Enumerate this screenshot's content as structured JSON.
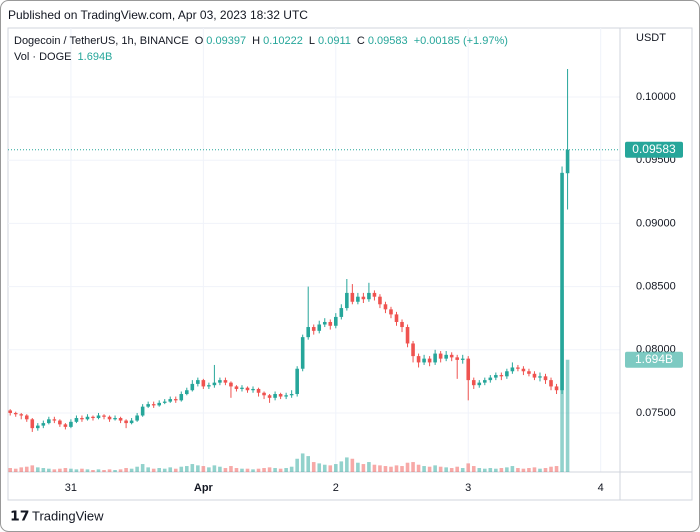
{
  "chart_data": {
    "type": "candlestick",
    "published": "Published on TradingView.com, Apr 03, 2023 18:32 UTC",
    "title": "Dogecoin / TetherUS, 1h, BINANCE",
    "ohlc_labels": [
      "O",
      "H",
      "L",
      "C"
    ],
    "change": "+0.00185 (+1.97%)",
    "volume_title": "Vol · DOGE",
    "volume_label": "1.694B",
    "y_unit": "USDT",
    "brand": "TradingView",
    "up_color": "#26a69a",
    "down_color": "#ef5350",
    "categories": [
      null,
      null,
      null,
      null,
      null,
      null,
      null,
      null,
      null,
      null,
      null,
      null,
      null,
      null,
      null,
      null,
      null,
      null,
      null,
      null,
      null,
      null,
      null,
      null,
      null,
      null,
      null,
      null,
      null,
      null,
      null,
      null,
      null,
      null,
      null,
      null,
      null,
      null,
      null,
      null,
      null,
      null,
      null,
      null,
      null,
      null,
      null,
      null,
      null,
      null,
      null,
      null,
      null,
      null,
      null,
      null,
      null,
      null,
      null,
      null,
      null,
      null,
      null,
      null,
      null,
      null,
      null,
      null,
      null,
      null,
      null,
      null,
      null,
      null,
      null,
      null,
      null,
      null,
      null,
      null,
      null,
      null,
      null,
      null,
      null,
      null,
      null,
      null,
      null,
      null,
      null,
      null,
      null,
      null,
      null,
      null,
      null,
      null,
      null,
      null,
      null,
      null
    ],
    "open": [
      0.0752,
      0.075,
      0.0749,
      0.0748,
      0.0745,
      0.0738,
      0.074,
      0.0742,
      0.0745,
      0.0744,
      0.0741,
      0.0739,
      0.0743,
      0.0746,
      0.0745,
      0.0747,
      0.0746,
      0.0748,
      0.0747,
      0.0745,
      0.0746,
      0.0744,
      0.0742,
      0.0744,
      0.0748,
      0.0755,
      0.0757,
      0.0756,
      0.0758,
      0.0759,
      0.0761,
      0.076,
      0.0765,
      0.0768,
      0.0773,
      0.0776,
      0.0771,
      0.0772,
      0.0774,
      0.0776,
      0.0774,
      0.0771,
      0.0769,
      0.077,
      0.0768,
      0.0769,
      0.0766,
      0.0764,
      0.0762,
      0.0765,
      0.0763,
      0.0764,
      0.0765,
      0.0785,
      0.081,
      0.0818,
      0.0815,
      0.082,
      0.0822,
      0.0819,
      0.0826,
      0.0833,
      0.0845,
      0.0838,
      0.0842,
      0.084,
      0.0845,
      0.0842,
      0.0836,
      0.0832,
      0.0828,
      0.0822,
      0.0818,
      0.0805,
      0.0795,
      0.079,
      0.0793,
      0.079,
      0.0797,
      0.0793,
      0.0796,
      0.0794,
      0.0792,
      0.0793,
      0.0776,
      0.0772,
      0.0774,
      0.0776,
      0.0778,
      0.078,
      0.0779,
      0.0783,
      0.0786,
      0.0785,
      0.0783,
      0.0781,
      0.0778,
      0.0779,
      0.0776,
      0.0771,
      0.0768,
      0.09397
    ],
    "high": [
      0.0753,
      0.0751,
      0.075,
      0.0749,
      0.0746,
      0.0742,
      0.0744,
      0.0747,
      0.0747,
      0.0745,
      0.0742,
      0.0745,
      0.0748,
      0.0748,
      0.0749,
      0.0748,
      0.075,
      0.0749,
      0.0748,
      0.0748,
      0.0747,
      0.0745,
      0.0746,
      0.075,
      0.0757,
      0.0759,
      0.0759,
      0.076,
      0.0761,
      0.0763,
      0.0763,
      0.0767,
      0.077,
      0.0776,
      0.0778,
      0.0777,
      0.0774,
      0.0788,
      0.0778,
      0.0778,
      0.0775,
      0.0772,
      0.0772,
      0.0771,
      0.0771,
      0.077,
      0.0767,
      0.0765,
      0.0767,
      0.0766,
      0.0766,
      0.0768,
      0.0787,
      0.0812,
      0.085,
      0.082,
      0.0823,
      0.0825,
      0.0824,
      0.0829,
      0.0836,
      0.0856,
      0.0852,
      0.0845,
      0.0845,
      0.0853,
      0.0847,
      0.0844,
      0.0838,
      0.0834,
      0.083,
      0.0824,
      0.082,
      0.0807,
      0.0797,
      0.0796,
      0.0795,
      0.08,
      0.0799,
      0.0799,
      0.0798,
      0.0796,
      0.0796,
      0.0795,
      0.0778,
      0.0776,
      0.0778,
      0.078,
      0.0782,
      0.0782,
      0.0785,
      0.079,
      0.0788,
      0.0787,
      0.0785,
      0.0783,
      0.0782,
      0.0781,
      0.0778,
      0.0773,
      0.0945,
      0.10222
    ],
    "low": [
      0.0748,
      0.0747,
      0.0745,
      0.0743,
      0.0735,
      0.0736,
      0.0738,
      0.0741,
      0.0742,
      0.0739,
      0.0737,
      0.0738,
      0.0742,
      0.0743,
      0.0744,
      0.0744,
      0.0745,
      0.0745,
      0.0743,
      0.0744,
      0.0742,
      0.0738,
      0.0741,
      0.0743,
      0.0747,
      0.0754,
      0.0754,
      0.0755,
      0.0757,
      0.0758,
      0.0758,
      0.0759,
      0.0764,
      0.0767,
      0.0771,
      0.0769,
      0.0769,
      0.077,
      0.0772,
      0.0772,
      0.0762,
      0.0767,
      0.0767,
      0.0766,
      0.0766,
      0.0763,
      0.0761,
      0.0758,
      0.076,
      0.0761,
      0.0761,
      0.0762,
      0.0763,
      0.0783,
      0.0808,
      0.0812,
      0.0813,
      0.0818,
      0.0816,
      0.0817,
      0.0824,
      0.0831,
      0.0836,
      0.0836,
      0.0837,
      0.0838,
      0.0839,
      0.0833,
      0.0829,
      0.0825,
      0.0819,
      0.0814,
      0.0802,
      0.079,
      0.0786,
      0.0788,
      0.0787,
      0.0788,
      0.079,
      0.0791,
      0.0791,
      0.0777,
      0.0789,
      0.076,
      0.0769,
      0.077,
      0.0772,
      0.0774,
      0.0776,
      0.0776,
      0.0777,
      0.0781,
      0.0783,
      0.078,
      0.0779,
      0.0776,
      0.0775,
      0.0773,
      0.0768,
      0.0765,
      0.0765,
      0.0911
    ],
    "close": [
      0.075,
      0.0749,
      0.0748,
      0.0745,
      0.0738,
      0.074,
      0.0742,
      0.0745,
      0.0744,
      0.0741,
      0.0739,
      0.0743,
      0.0746,
      0.0745,
      0.0747,
      0.0746,
      0.0748,
      0.0747,
      0.0745,
      0.0746,
      0.0744,
      0.0742,
      0.0744,
      0.0748,
      0.0755,
      0.0757,
      0.0756,
      0.0758,
      0.0759,
      0.0761,
      0.076,
      0.0765,
      0.0768,
      0.0773,
      0.0776,
      0.0771,
      0.0772,
      0.0774,
      0.0776,
      0.0774,
      0.0771,
      0.0769,
      0.077,
      0.0768,
      0.0769,
      0.0766,
      0.0764,
      0.0762,
      0.0765,
      0.0763,
      0.0764,
      0.0765,
      0.0785,
      0.081,
      0.0818,
      0.0815,
      0.082,
      0.0822,
      0.0819,
      0.0826,
      0.0833,
      0.0845,
      0.0838,
      0.0842,
      0.084,
      0.0845,
      0.0842,
      0.0836,
      0.0832,
      0.0828,
      0.0822,
      0.0818,
      0.0805,
      0.0795,
      0.079,
      0.0793,
      0.079,
      0.0797,
      0.0793,
      0.0796,
      0.0794,
      0.0792,
      0.0793,
      0.0776,
      0.0772,
      0.0774,
      0.0776,
      0.0778,
      0.078,
      0.0779,
      0.0783,
      0.0786,
      0.0785,
      0.0783,
      0.0781,
      0.0778,
      0.0779,
      0.0776,
      0.0771,
      0.0768,
      0.094,
      0.09583
    ],
    "volume": [
      0.06,
      0.05,
      0.07,
      0.08,
      0.1,
      0.07,
      0.06,
      0.05,
      0.04,
      0.05,
      0.06,
      0.05,
      0.04,
      0.05,
      0.04,
      0.03,
      0.04,
      0.03,
      0.04,
      0.03,
      0.04,
      0.06,
      0.05,
      0.08,
      0.12,
      0.07,
      0.05,
      0.06,
      0.05,
      0.07,
      0.05,
      0.08,
      0.09,
      0.12,
      0.1,
      0.09,
      0.07,
      0.1,
      0.08,
      0.06,
      0.09,
      0.06,
      0.05,
      0.05,
      0.04,
      0.05,
      0.06,
      0.07,
      0.06,
      0.05,
      0.06,
      0.08,
      0.2,
      0.28,
      0.24,
      0.15,
      0.13,
      0.11,
      0.1,
      0.12,
      0.16,
      0.22,
      0.2,
      0.14,
      0.12,
      0.15,
      0.11,
      0.1,
      0.09,
      0.08,
      0.1,
      0.09,
      0.14,
      0.15,
      0.11,
      0.09,
      0.08,
      0.1,
      0.08,
      0.07,
      0.06,
      0.08,
      0.06,
      0.13,
      0.09,
      0.06,
      0.05,
      0.06,
      0.05,
      0.06,
      0.07,
      0.09,
      0.06,
      0.05,
      0.06,
      0.07,
      0.05,
      0.06,
      0.08,
      0.09,
      2.75,
      1.694
    ],
    "vlim": [
      0,
      6.7
    ],
    "ylim": [
      0.07033,
      0.10546
    ],
    "yticks": [
      {
        "value": 0.075,
        "label": "0.07500"
      },
      {
        "value": 0.08,
        "label": "0.08000"
      },
      {
        "value": 0.085,
        "label": "0.08500"
      },
      {
        "value": 0.09,
        "label": "0.09000"
      },
      {
        "value": 0.095,
        "label": "0.09500"
      },
      {
        "value": 0.1,
        "label": "0.10000"
      }
    ],
    "xlim": [
      -0.4,
      110.5
    ],
    "xticks": [
      {
        "value": 11,
        "label": "31"
      },
      {
        "value": 35,
        "label": "Apr"
      },
      {
        "value": 59,
        "label": "2"
      },
      {
        "value": 83,
        "label": "3"
      },
      {
        "value": 107,
        "label": "4"
      }
    ],
    "grid": true
  }
}
